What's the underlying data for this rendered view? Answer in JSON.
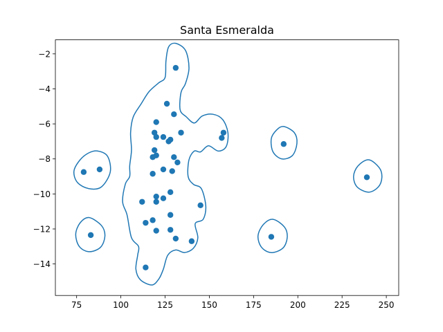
{
  "chart_data": {
    "type": "scatter",
    "title": "Santa Esmeralda",
    "xlabel": "",
    "ylabel": "",
    "xlim": [
      63,
      257
    ],
    "ylim": [
      -15.8,
      -1.2
    ],
    "xticks": [
      75,
      100,
      125,
      150,
      175,
      200,
      225,
      250
    ],
    "yticks": [
      -14,
      -12,
      -10,
      -8,
      -6,
      -4,
      -2
    ],
    "grid": false,
    "point_color": "#1f77b4",
    "contour_color": "#1f77b4",
    "points": [
      {
        "x": 131,
        "y": -2.8
      },
      {
        "x": 126,
        "y": -4.85
      },
      {
        "x": 130,
        "y": -5.45
      },
      {
        "x": 120,
        "y": -5.9
      },
      {
        "x": 134,
        "y": -6.5
      },
      {
        "x": 158,
        "y": -6.5
      },
      {
        "x": 157,
        "y": -6.8
      },
      {
        "x": 119,
        "y": -6.5
      },
      {
        "x": 120,
        "y": -6.75
      },
      {
        "x": 124,
        "y": -6.75
      },
      {
        "x": 127,
        "y": -7.0
      },
      {
        "x": 128,
        "y": -6.9
      },
      {
        "x": 192,
        "y": -7.15
      },
      {
        "x": 119,
        "y": -7.5
      },
      {
        "x": 120,
        "y": -7.8
      },
      {
        "x": 118,
        "y": -7.9
      },
      {
        "x": 130,
        "y": -7.9
      },
      {
        "x": 132,
        "y": -8.2
      },
      {
        "x": 124,
        "y": -8.6
      },
      {
        "x": 129,
        "y": -8.7
      },
      {
        "x": 118,
        "y": -8.85
      },
      {
        "x": 79,
        "y": -8.75
      },
      {
        "x": 88,
        "y": -8.6
      },
      {
        "x": 239,
        "y": -9.05
      },
      {
        "x": 128,
        "y": -9.9
      },
      {
        "x": 120,
        "y": -10.15
      },
      {
        "x": 124,
        "y": -10.25
      },
      {
        "x": 112,
        "y": -10.45
      },
      {
        "x": 120,
        "y": -10.45
      },
      {
        "x": 145,
        "y": -10.65
      },
      {
        "x": 128,
        "y": -11.2
      },
      {
        "x": 118,
        "y": -11.5
      },
      {
        "x": 114,
        "y": -11.65
      },
      {
        "x": 120,
        "y": -12.1
      },
      {
        "x": 128,
        "y": -12.05
      },
      {
        "x": 83,
        "y": -12.35
      },
      {
        "x": 185,
        "y": -12.45
      },
      {
        "x": 131,
        "y": -12.55
      },
      {
        "x": 140,
        "y": -12.7
      },
      {
        "x": 114,
        "y": -14.2
      }
    ],
    "contours": [
      [
        [
          131,
          -1.4
        ],
        [
          136.5,
          -1.8
        ],
        [
          138.5,
          -2.8
        ],
        [
          136.5,
          -3.7
        ],
        [
          134,
          -4.2
        ],
        [
          133.5,
          -5.2
        ],
        [
          137,
          -5.6
        ],
        [
          141.5,
          -5.95
        ],
        [
          146,
          -5.55
        ],
        [
          152,
          -5.45
        ],
        [
          157.5,
          -5.75
        ],
        [
          160.5,
          -6.5
        ],
        [
          159.5,
          -7.3
        ],
        [
          155,
          -7.55
        ],
        [
          149.5,
          -7.25
        ],
        [
          145,
          -7.6
        ],
        [
          141.5,
          -7.55
        ],
        [
          138.5,
          -8.05
        ],
        [
          138,
          -9.0
        ],
        [
          141,
          -9.45
        ],
        [
          145.5,
          -9.7
        ],
        [
          148,
          -10.7
        ],
        [
          146.5,
          -11.45
        ],
        [
          142,
          -11.7
        ],
        [
          143.5,
          -12.5
        ],
        [
          141,
          -13.1
        ],
        [
          136,
          -13.35
        ],
        [
          131,
          -13.2
        ],
        [
          126.5,
          -13.5
        ],
        [
          124,
          -14.3
        ],
        [
          121.5,
          -14.85
        ],
        [
          117.5,
          -15.2
        ],
        [
          111,
          -14.9
        ],
        [
          108.5,
          -14.3
        ],
        [
          109.5,
          -13.5
        ],
        [
          110,
          -13.0
        ],
        [
          106,
          -12.5
        ],
        [
          103.5,
          -11.2
        ],
        [
          101,
          -10.45
        ],
        [
          102.5,
          -9.45
        ],
        [
          105,
          -9.0
        ],
        [
          105,
          -8.4
        ],
        [
          106,
          -7.5
        ],
        [
          105.5,
          -6.5
        ],
        [
          107,
          -5.6
        ],
        [
          111.5,
          -4.85
        ],
        [
          116,
          -4.15
        ],
        [
          121.5,
          -3.65
        ],
        [
          125,
          -3.35
        ],
        [
          125.5,
          -2.4
        ],
        [
          127,
          -1.6
        ]
      ],
      [
        [
          87,
          -7.55
        ],
        [
          92.5,
          -7.85
        ],
        [
          94,
          -8.75
        ],
        [
          89,
          -9.6
        ],
        [
          82,
          -9.7
        ],
        [
          75.5,
          -9.35
        ],
        [
          73.5,
          -8.7
        ],
        [
          77,
          -8.05
        ],
        [
          82,
          -7.65
        ]
      ],
      [
        [
          82,
          -11.35
        ],
        [
          89,
          -11.8
        ],
        [
          91,
          -12.4
        ],
        [
          88.5,
          -13.05
        ],
        [
          82,
          -13.3
        ],
        [
          76.5,
          -13.0
        ],
        [
          74.5,
          -12.3
        ],
        [
          77,
          -11.65
        ]
      ],
      [
        [
          192,
          -6.15
        ],
        [
          198,
          -6.5
        ],
        [
          199.5,
          -7.1
        ],
        [
          197,
          -7.8
        ],
        [
          191,
          -8.0
        ],
        [
          186,
          -7.6
        ],
        [
          185,
          -6.85
        ],
        [
          188,
          -6.35
        ]
      ],
      [
        [
          240,
          -8.05
        ],
        [
          246,
          -8.5
        ],
        [
          247.5,
          -9.05
        ],
        [
          245.5,
          -9.6
        ],
        [
          240,
          -9.9
        ],
        [
          233.5,
          -9.6
        ],
        [
          231.5,
          -9.0
        ],
        [
          234,
          -8.4
        ]
      ],
      [
        [
          186,
          -11.45
        ],
        [
          192.5,
          -11.9
        ],
        [
          194,
          -12.5
        ],
        [
          191.5,
          -13.1
        ],
        [
          185,
          -13.35
        ],
        [
          179.5,
          -13.05
        ],
        [
          177.5,
          -12.4
        ],
        [
          180.5,
          -11.75
        ]
      ]
    ]
  }
}
